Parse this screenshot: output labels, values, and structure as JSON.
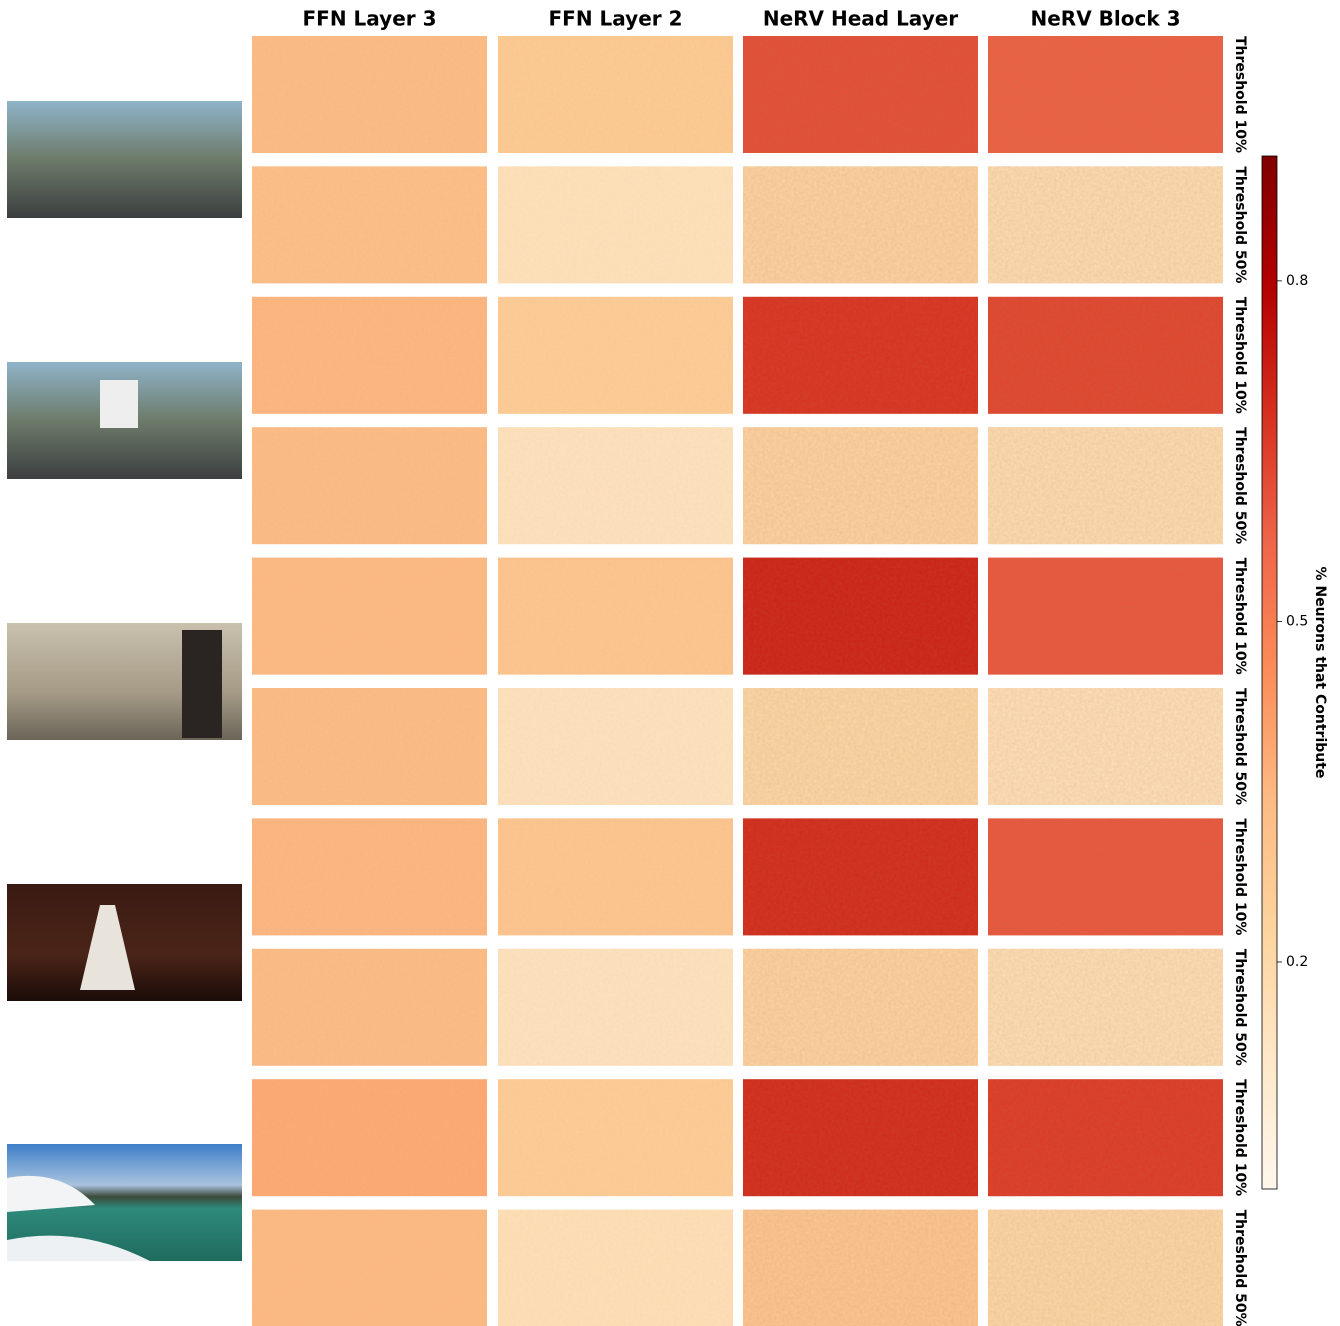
{
  "chart_data": {
    "type": "heatmap-grid",
    "columns": [
      "FFN Layer 3",
      "FFN Layer 2",
      "NeRV Head Layer",
      "NeRV Block 3"
    ],
    "row_labels": [
      "Threshold 10%",
      "Threshold 50%",
      "Threshold 10%",
      "Threshold 50%",
      "Threshold 10%",
      "Threshold 50%",
      "Threshold 10%",
      "Threshold 50%",
      "Threshold 10%",
      "Threshold 50%"
    ],
    "values": [
      [
        0.33,
        0.27,
        0.62,
        0.58
      ],
      [
        0.32,
        0.15,
        0.22,
        0.17
      ],
      [
        0.35,
        0.26,
        0.68,
        0.64
      ],
      [
        0.33,
        0.14,
        0.22,
        0.17
      ],
      [
        0.34,
        0.29,
        0.72,
        0.6
      ],
      [
        0.33,
        0.14,
        0.2,
        0.15
      ],
      [
        0.35,
        0.29,
        0.7,
        0.6
      ],
      [
        0.33,
        0.14,
        0.22,
        0.16
      ],
      [
        0.38,
        0.26,
        0.7,
        0.66
      ],
      [
        0.34,
        0.16,
        0.28,
        0.2
      ]
    ],
    "colormap": "OrRd",
    "colorbar": {
      "label": "% Neurons that Contribute",
      "lim": [
        0.0,
        0.91
      ],
      "ticks": [
        0.2,
        0.5,
        0.8
      ]
    }
  }
}
